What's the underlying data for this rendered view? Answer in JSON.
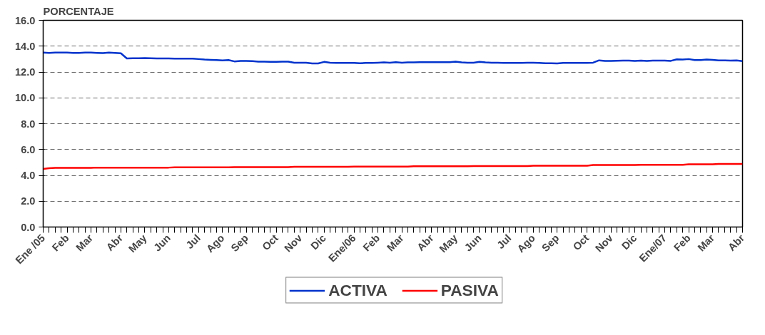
{
  "chart_data": {
    "type": "line",
    "ylabel": "PORCENTAJE",
    "categories": [
      "Ene /05",
      null,
      null,
      null,
      "Feb",
      null,
      null,
      null,
      "Mar",
      null,
      null,
      null,
      null,
      "Abr",
      null,
      null,
      null,
      "May",
      null,
      null,
      null,
      "Jun",
      null,
      null,
      null,
      null,
      "Jul",
      null,
      null,
      null,
      "Ago",
      null,
      null,
      null,
      "Sep",
      null,
      null,
      null,
      null,
      "Oct",
      null,
      null,
      null,
      "Nov",
      null,
      null,
      null,
      "Dic",
      null,
      null,
      null,
      null,
      "Ene/06",
      null,
      null,
      null,
      "Feb",
      null,
      null,
      null,
      "Mar",
      null,
      null,
      null,
      null,
      "Abr",
      null,
      null,
      null,
      "May",
      null,
      null,
      null,
      "Jun",
      null,
      null,
      null,
      null,
      "Jul",
      null,
      null,
      null,
      "Ago",
      null,
      null,
      null,
      "Sep",
      null,
      null,
      null,
      null,
      "Oct",
      null,
      null,
      null,
      "Nov",
      null,
      null,
      null,
      "Dic",
      null,
      null,
      null,
      null,
      "Ene/07",
      null,
      null,
      null,
      "Feb",
      null,
      null,
      null,
      "Mar",
      null,
      null,
      null,
      null,
      "Abr"
    ],
    "series": [
      {
        "name": "ACTIVA",
        "color": "#0033cc",
        "values": [
          13.5,
          13.48,
          13.5,
          13.5,
          13.5,
          13.48,
          13.48,
          13.5,
          13.5,
          13.48,
          13.46,
          13.5,
          13.48,
          13.45,
          13.05,
          13.06,
          13.06,
          13.08,
          13.06,
          13.05,
          13.05,
          13.05,
          13.04,
          13.03,
          13.04,
          13.03,
          13.0,
          12.96,
          12.94,
          12.92,
          12.9,
          12.92,
          12.82,
          12.86,
          12.86,
          12.84,
          12.8,
          12.8,
          12.78,
          12.78,
          12.8,
          12.8,
          12.72,
          12.72,
          12.72,
          12.66,
          12.66,
          12.78,
          12.72,
          12.7,
          12.7,
          12.7,
          12.7,
          12.68,
          12.7,
          12.7,
          12.72,
          12.74,
          12.72,
          12.76,
          12.72,
          12.74,
          12.74,
          12.76,
          12.76,
          12.76,
          12.76,
          12.76,
          12.76,
          12.8,
          12.74,
          12.72,
          12.72,
          12.78,
          12.74,
          12.72,
          12.72,
          12.71,
          12.7,
          12.7,
          12.7,
          12.72,
          12.72,
          12.7,
          12.68,
          12.68,
          12.66,
          12.7,
          12.7,
          12.7,
          12.7,
          12.7,
          12.72,
          12.9,
          12.86,
          12.86,
          12.87,
          12.88,
          12.88,
          12.86,
          12.88,
          12.86,
          12.88,
          12.88,
          12.88,
          12.86,
          12.98,
          12.96,
          13.0,
          12.92,
          12.92,
          12.96,
          12.94,
          12.9,
          12.9,
          12.88,
          12.9,
          12.84
        ]
      },
      {
        "name": "PASIVA",
        "color": "#ff0000",
        "values": [
          4.5,
          4.55,
          4.58,
          4.58,
          4.58,
          4.58,
          4.58,
          4.58,
          4.58,
          4.6,
          4.6,
          4.6,
          4.6,
          4.6,
          4.6,
          4.6,
          4.6,
          4.6,
          4.6,
          4.6,
          4.6,
          4.6,
          4.62,
          4.62,
          4.62,
          4.62,
          4.62,
          4.62,
          4.62,
          4.62,
          4.62,
          4.62,
          4.64,
          4.64,
          4.64,
          4.64,
          4.64,
          4.64,
          4.64,
          4.64,
          4.64,
          4.64,
          4.66,
          4.66,
          4.66,
          4.66,
          4.66,
          4.66,
          4.66,
          4.66,
          4.66,
          4.66,
          4.68,
          4.68,
          4.68,
          4.68,
          4.68,
          4.68,
          4.68,
          4.68,
          4.68,
          4.68,
          4.7,
          4.7,
          4.7,
          4.7,
          4.7,
          4.7,
          4.7,
          4.7,
          4.7,
          4.7,
          4.72,
          4.72,
          4.72,
          4.72,
          4.72,
          4.72,
          4.72,
          4.72,
          4.72,
          4.72,
          4.74,
          4.74,
          4.74,
          4.74,
          4.74,
          4.74,
          4.74,
          4.74,
          4.74,
          4.74,
          4.8,
          4.8,
          4.8,
          4.8,
          4.8,
          4.8,
          4.8,
          4.8,
          4.82,
          4.82,
          4.82,
          4.82,
          4.82,
          4.82,
          4.82,
          4.82,
          4.85,
          4.85,
          4.85,
          4.85,
          4.85,
          4.88,
          4.88,
          4.88,
          4.88,
          4.88
        ]
      }
    ],
    "ylim": [
      0,
      16
    ],
    "yticks": [
      {
        "value": 0,
        "label": "0.0"
      },
      {
        "value": 2,
        "label": "2.0"
      },
      {
        "value": 4,
        "label": "4.0"
      },
      {
        "value": 6,
        "label": "6.0"
      },
      {
        "value": 8,
        "label": "8.0"
      },
      {
        "value": 10,
        "label": "10.0"
      },
      {
        "value": 12,
        "label": "12.0"
      },
      {
        "value": 14,
        "label": "14.0"
      },
      {
        "value": 16,
        "label": "16.0"
      }
    ],
    "grid": "y",
    "legend": "bottom",
    "line_style": "solid"
  }
}
